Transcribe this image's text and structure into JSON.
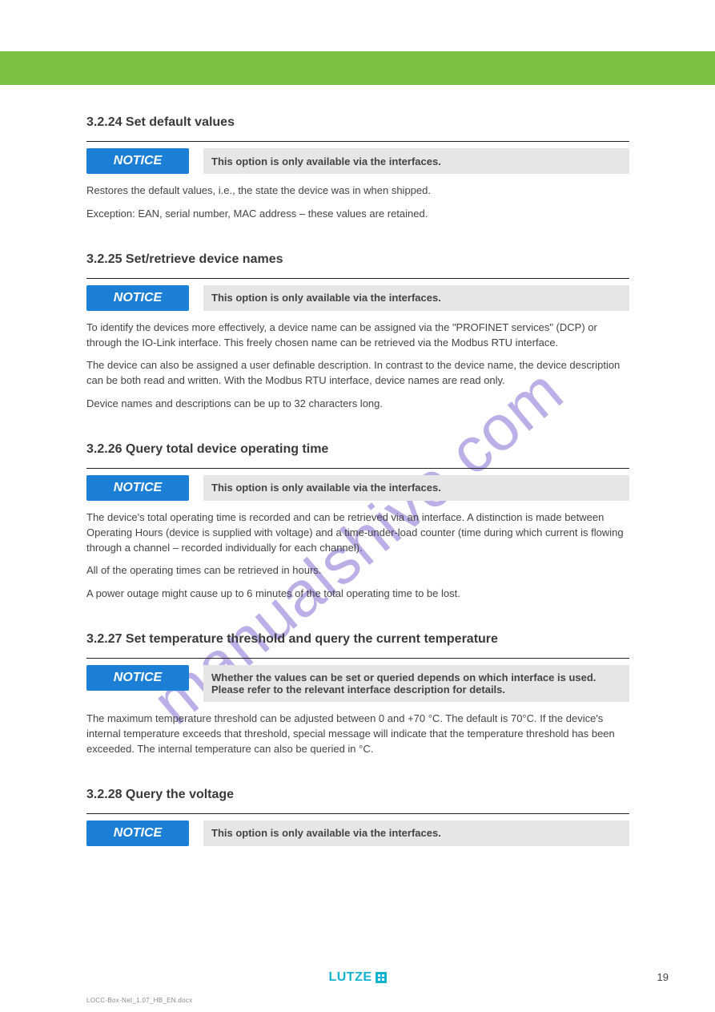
{
  "header": {
    "bar_color": "#7cc242"
  },
  "watermark": "manualshive.com",
  "notice_label": "NOTICE",
  "sections": [
    {
      "title": "3.2.24 Set default values",
      "notice": "This option is only available via the interfaces.",
      "paragraphs": [
        "Restores the default values, i.e., the state the device was in when shipped.",
        "Exception: EAN, serial number, MAC address – these values are retained."
      ]
    },
    {
      "title": "3.2.25 Set/retrieve device names",
      "notice": "This option is only available via the interfaces.",
      "paragraphs": [
        "To identify the devices more effectively, a device name can be assigned via the \"PROFINET services\" (DCP) or through the IO-Link interface. This freely chosen name can be retrieved via the Modbus RTU interface.",
        "The device can also be assigned a user definable description. In contrast to the device name, the device description can be both read and written. With the Modbus RTU interface, device names are read only.",
        "Device names and descriptions can be up to 32 characters long."
      ]
    },
    {
      "title": "3.2.26 Query total device operating time",
      "notice": "This option is only available via the interfaces.",
      "paragraphs": [
        "The device's total operating time is recorded and can be retrieved via an interface. A distinction is made between Operating Hours (device is supplied with voltage) and a time-under-load counter (time during which current is flowing through a channel – recorded individually for each channel).",
        "All of the operating times can be retrieved in hours.",
        "A power outage might cause up to 6 minutes of the total operating time to be lost."
      ]
    },
    {
      "title": "3.2.27 Set temperature threshold and query the current temperature",
      "notice": "Whether the values can be set or queried depends on which interface is used. Please refer to the relevant interface description for details.",
      "paragraphs": [
        "The maximum temperature threshold can be adjusted between 0 and +70 °C. The default is 70°C. If the device's internal temperature exceeds that threshold, special message will indicate that the temperature threshold has been exceeded. The internal temperature can also be queried in °C."
      ]
    },
    {
      "title": "3.2.28 Query the voltage",
      "notice": "This option is only available via the interfaces.",
      "paragraphs": []
    }
  ],
  "footer": {
    "logo_text": "LUTZE",
    "page_number": "19",
    "doc_id": "LOCC-Box-Net_1.07_HB_EN.docx"
  },
  "colors": {
    "notice_bg": "#1b7fd6",
    "notice_text_bg": "#e6e6e6",
    "divider": "#222222",
    "logo": "#11b3cf"
  }
}
